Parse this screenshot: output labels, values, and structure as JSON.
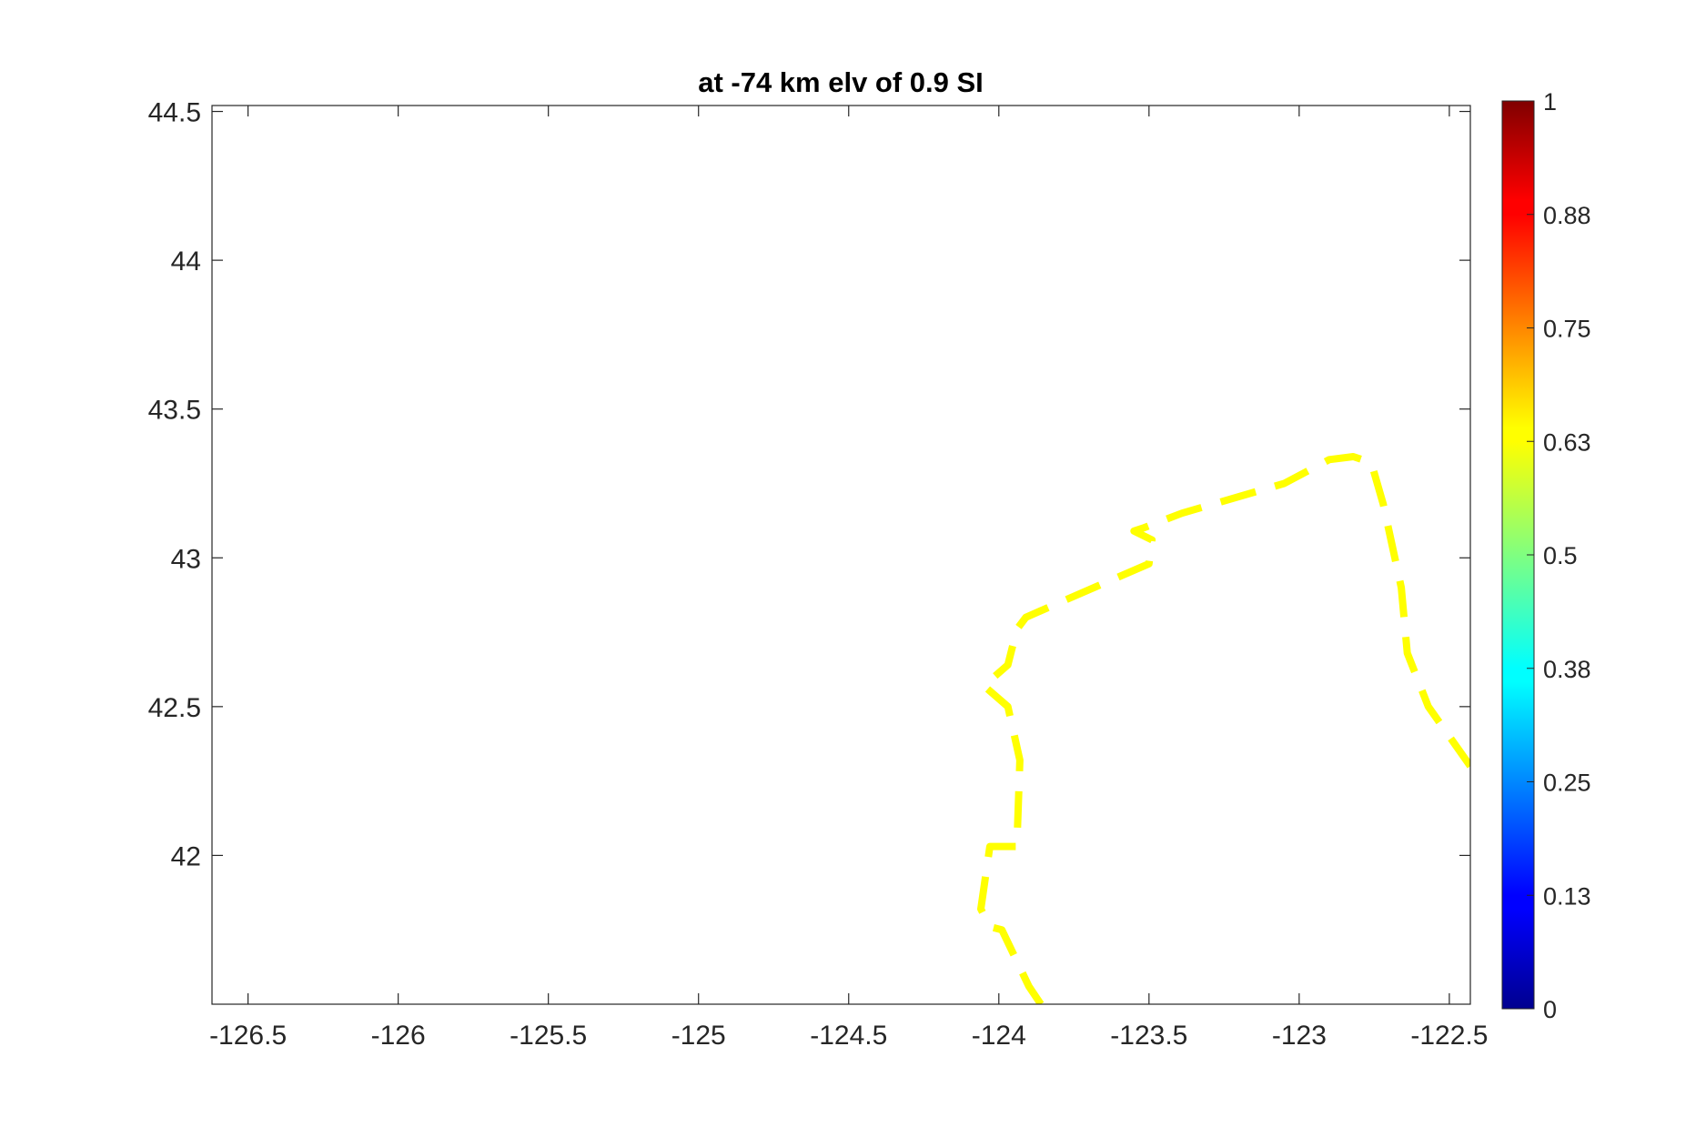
{
  "chart_data": {
    "type": "line",
    "title": "at -74 km elv of 0.9 SI",
    "xlabel": "",
    "ylabel": "",
    "xlim": [
      -126.62,
      -122.43
    ],
    "ylim": [
      41.5,
      44.52
    ],
    "xticks": [
      -126.5,
      -126,
      -125.5,
      -125,
      -124.5,
      -124,
      -123.5,
      -123,
      -122.5
    ],
    "xtick_labels": [
      "-126.5",
      "-126",
      "-125.5",
      "-125",
      "-124.5",
      "-124",
      "-123.5",
      "-123",
      "-122.5"
    ],
    "yticks": [
      42,
      42.5,
      43,
      43.5,
      44,
      44.5
    ],
    "ytick_labels": [
      "42",
      "42.5",
      "43",
      "43.5",
      "44",
      "44.5"
    ],
    "grid": false,
    "series": [
      {
        "style": "dashed",
        "color": "#ffff00",
        "points": [
          [
            -123.86,
            41.5
          ],
          [
            -123.9,
            41.56
          ],
          [
            -123.99,
            41.75
          ],
          [
            -124.03,
            41.76
          ],
          [
            -124.06,
            41.82
          ],
          [
            -124.03,
            42.03
          ],
          [
            -123.94,
            42.03
          ],
          [
            -123.93,
            42.32
          ],
          [
            -123.97,
            42.5
          ],
          [
            -124.05,
            42.57
          ],
          [
            -123.97,
            42.64
          ],
          [
            -123.94,
            42.76
          ],
          [
            -123.91,
            42.8
          ],
          [
            -123.82,
            42.84
          ],
          [
            -123.5,
            42.98
          ],
          [
            -123.49,
            43.06
          ],
          [
            -123.55,
            43.09
          ],
          [
            -123.52,
            43.1
          ],
          [
            -123.39,
            43.15
          ],
          [
            -123.05,
            43.25
          ],
          [
            -122.9,
            43.33
          ],
          [
            -122.82,
            43.34
          ],
          [
            -122.76,
            43.32
          ],
          [
            -122.72,
            43.18
          ],
          [
            -122.66,
            42.9
          ],
          [
            -122.64,
            42.68
          ],
          [
            -122.57,
            42.5
          ],
          [
            -122.43,
            42.3
          ]
        ]
      }
    ],
    "colorbar": {
      "colormap": "jet",
      "range": [
        0,
        1
      ],
      "ticks": [
        0,
        0.125,
        0.25,
        0.375,
        0.5,
        0.625,
        0.75,
        0.875,
        1
      ],
      "tick_labels": [
        "0",
        "0.13",
        "0.25",
        "0.38",
        "0.5",
        "0.63",
        "0.75",
        "0.88",
        "1"
      ]
    }
  }
}
